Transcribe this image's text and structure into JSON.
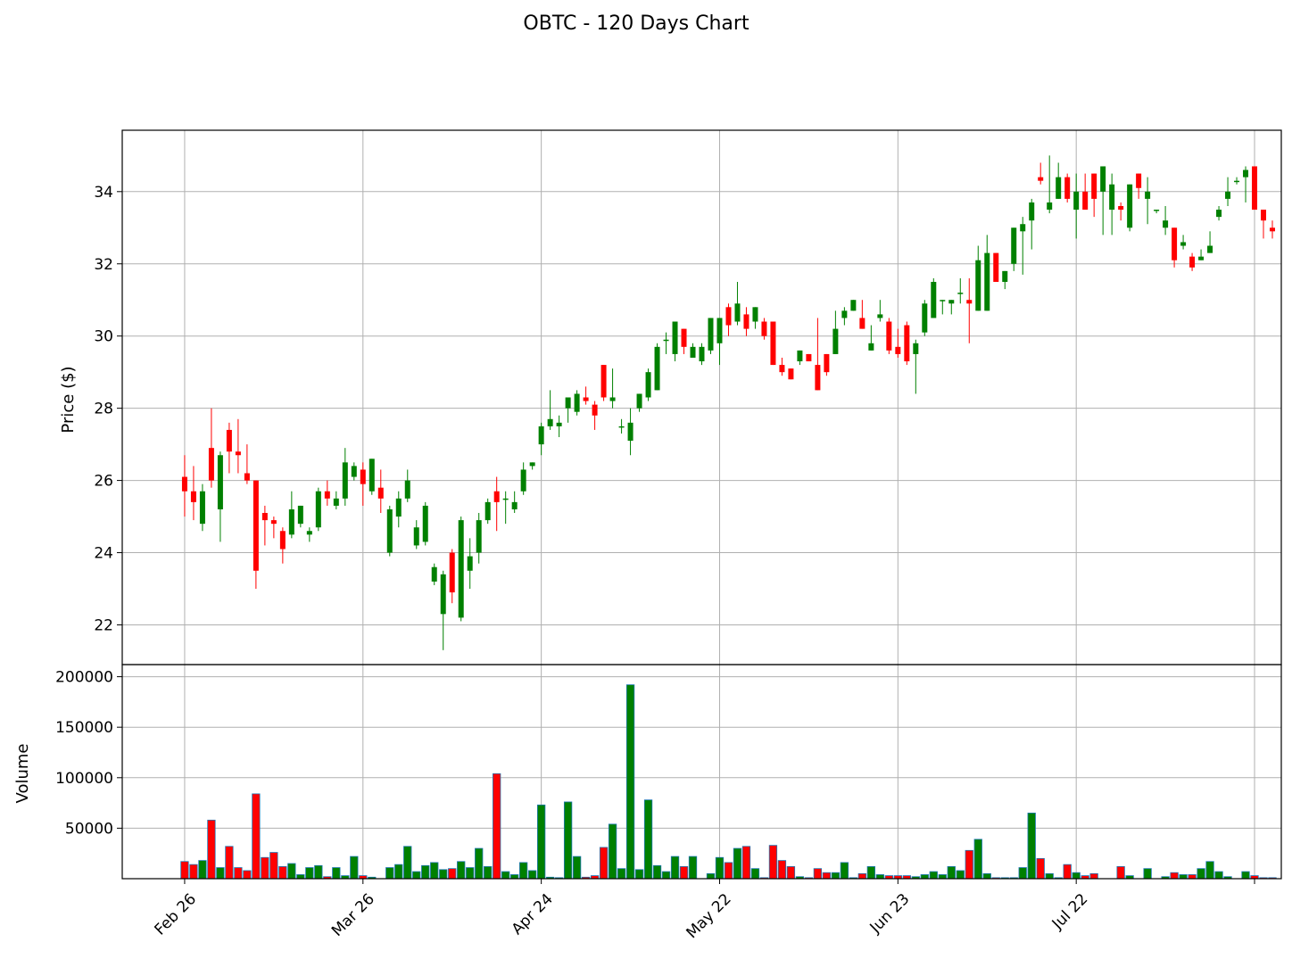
{
  "chart_data": {
    "type": "candlestick",
    "title": "OBTC - 120 Days Chart",
    "price_panel": {
      "ylabel": "Price ($)",
      "ylim": [
        20.9,
        35.7
      ],
      "yticks": [
        22,
        24,
        26,
        28,
        30,
        32,
        34
      ],
      "grid": true
    },
    "volume_panel": {
      "ylabel": "Volume",
      "ylim": [
        0,
        212000
      ],
      "yticks": [
        50000,
        100000,
        150000,
        200000
      ],
      "grid": true
    },
    "x_axis": {
      "tick_labels": [
        "Feb 26",
        "Mar 26",
        "Apr 24",
        "May 22",
        "Jun 23",
        "Jul 22"
      ],
      "tick_positions": [
        0,
        20,
        40,
        60,
        80,
        100
      ],
      "extra_tick_positions": [
        120
      ],
      "xlim": [
        -7,
        123
      ]
    },
    "colors": {
      "up": "#008000",
      "down": "#ff0000",
      "volume_edge": "#1f77b4"
    },
    "candles": [
      [
        0,
        26.1,
        26.7,
        25.0,
        25.7,
        17000
      ],
      [
        1,
        25.7,
        26.4,
        24.9,
        25.4,
        14000
      ],
      [
        2,
        24.8,
        25.9,
        24.6,
        25.7,
        18000
      ],
      [
        3,
        26.9,
        28.0,
        25.8,
        26.0,
        58000
      ],
      [
        4,
        25.2,
        26.8,
        24.3,
        26.7,
        11000
      ],
      [
        5,
        27.4,
        27.6,
        26.2,
        26.8,
        32000
      ],
      [
        6,
        26.8,
        27.7,
        26.2,
        26.7,
        11000
      ],
      [
        7,
        26.2,
        27.0,
        25.9,
        26.0,
        8000
      ],
      [
        8,
        26.0,
        26.0,
        23.0,
        23.5,
        84000
      ],
      [
        9,
        25.1,
        25.3,
        24.2,
        24.9,
        21000
      ],
      [
        10,
        24.9,
        25.0,
        24.4,
        24.8,
        26000
      ],
      [
        11,
        24.6,
        24.7,
        23.7,
        24.1,
        12000
      ],
      [
        12,
        24.5,
        25.7,
        24.4,
        25.2,
        15000
      ],
      [
        13,
        24.8,
        25.3,
        24.7,
        25.3,
        4000
      ],
      [
        14,
        24.5,
        24.7,
        24.3,
        24.6,
        11000
      ],
      [
        15,
        24.7,
        25.8,
        24.6,
        25.7,
        13000
      ],
      [
        16,
        25.7,
        26.0,
        25.3,
        25.5,
        2000
      ],
      [
        17,
        25.3,
        25.7,
        25.2,
        25.5,
        11000
      ],
      [
        18,
        25.5,
        26.9,
        25.3,
        26.5,
        3000
      ],
      [
        19,
        26.1,
        26.5,
        26.0,
        26.4,
        22000
      ],
      [
        20,
        26.3,
        26.5,
        25.3,
        25.9,
        3000
      ],
      [
        21,
        25.7,
        26.6,
        25.6,
        26.6,
        1500
      ],
      [
        22,
        25.8,
        26.3,
        25.1,
        25.5,
        0
      ],
      [
        23,
        24.0,
        25.3,
        23.9,
        25.2,
        11000
      ],
      [
        24,
        25.0,
        25.7,
        24.7,
        25.5,
        14000
      ],
      [
        25,
        25.5,
        26.3,
        25.4,
        26.0,
        32000
      ],
      [
        26,
        24.2,
        24.9,
        24.1,
        24.7,
        7000
      ],
      [
        27,
        24.3,
        25.4,
        24.2,
        25.3,
        13000
      ],
      [
        28,
        23.2,
        23.7,
        23.1,
        23.6,
        16000
      ],
      [
        29,
        22.3,
        23.5,
        21.3,
        23.4,
        9000
      ],
      [
        30,
        24.0,
        24.1,
        22.6,
        22.9,
        10000
      ],
      [
        31,
        22.2,
        25.0,
        22.1,
        24.9,
        17000
      ],
      [
        32,
        23.5,
        24.4,
        23.0,
        23.9,
        11000
      ],
      [
        33,
        24.0,
        25.1,
        23.7,
        24.9,
        30000
      ],
      [
        34,
        24.9,
        25.5,
        24.8,
        25.4,
        12000
      ],
      [
        35,
        25.7,
        26.1,
        24.6,
        25.4,
        104000
      ],
      [
        36,
        25.5,
        25.7,
        24.8,
        25.5,
        7000
      ],
      [
        37,
        25.2,
        25.7,
        25.1,
        25.4,
        4000
      ],
      [
        38,
        25.7,
        26.5,
        25.6,
        26.3,
        16000
      ],
      [
        39,
        26.4,
        26.5,
        26.3,
        26.5,
        8000
      ],
      [
        40,
        27.0,
        27.6,
        26.7,
        27.5,
        73000
      ],
      [
        41,
        27.5,
        28.5,
        27.4,
        27.7,
        1500
      ],
      [
        42,
        27.5,
        27.8,
        27.2,
        27.6,
        1000
      ],
      [
        43,
        28.0,
        28.2,
        27.6,
        28.3,
        76000
      ],
      [
        44,
        27.9,
        28.5,
        27.8,
        28.4,
        22000
      ],
      [
        45,
        28.3,
        28.6,
        28.1,
        28.2,
        1500
      ],
      [
        46,
        28.1,
        28.2,
        27.4,
        27.8,
        3000
      ],
      [
        47,
        29.2,
        29.2,
        28.2,
        28.3,
        31000
      ],
      [
        48,
        28.2,
        29.1,
        28.0,
        28.3,
        54000
      ],
      [
        49,
        27.5,
        27.7,
        27.3,
        27.5,
        10000
      ],
      [
        50,
        27.1,
        28.0,
        26.7,
        27.6,
        192000
      ],
      [
        51,
        28.0,
        28.4,
        27.9,
        28.4,
        9000
      ],
      [
        52,
        28.3,
        29.1,
        28.2,
        29.0,
        78000
      ],
      [
        53,
        28.5,
        29.8,
        28.5,
        29.7,
        13000
      ],
      [
        54,
        29.9,
        30.1,
        29.5,
        29.9,
        7000
      ],
      [
        55,
        29.5,
        30.4,
        29.3,
        30.4,
        22000
      ],
      [
        56,
        30.2,
        30.2,
        29.5,
        29.7,
        12000
      ],
      [
        57,
        29.4,
        29.8,
        29.4,
        29.7,
        22000
      ],
      [
        58,
        29.3,
        29.8,
        29.2,
        29.7,
        0
      ],
      [
        59,
        29.6,
        30.5,
        29.5,
        30.5,
        5000
      ],
      [
        60,
        29.8,
        30.5,
        29.2,
        30.5,
        21000
      ],
      [
        61,
        30.8,
        30.9,
        30.0,
        30.3,
        16000
      ],
      [
        62,
        30.4,
        31.5,
        30.3,
        30.9,
        30000
      ],
      [
        63,
        30.6,
        30.8,
        30.0,
        30.2,
        32000
      ],
      [
        64,
        30.4,
        30.8,
        30.2,
        30.8,
        10000
      ],
      [
        65,
        30.4,
        30.5,
        29.9,
        30.0,
        1000
      ],
      [
        66,
        30.4,
        30.4,
        29.2,
        29.2,
        33000
      ],
      [
        67,
        29.2,
        29.4,
        28.9,
        29.0,
        18000
      ],
      [
        68,
        29.1,
        29.1,
        28.8,
        28.8,
        12000
      ],
      [
        69,
        29.3,
        29.6,
        29.2,
        29.6,
        2000
      ],
      [
        70,
        29.5,
        29.5,
        29.3,
        29.3,
        1000
      ],
      [
        71,
        29.2,
        30.5,
        28.5,
        28.5,
        10000
      ],
      [
        72,
        29.5,
        29.5,
        28.9,
        29.0,
        6000
      ],
      [
        73,
        29.5,
        30.7,
        29.5,
        30.2,
        6000
      ],
      [
        74,
        30.5,
        30.8,
        30.3,
        30.7,
        16000
      ],
      [
        75,
        30.7,
        31.0,
        30.7,
        31.0,
        1000
      ],
      [
        76,
        30.5,
        31.0,
        30.2,
        30.2,
        5000
      ],
      [
        77,
        29.6,
        30.3,
        29.6,
        29.8,
        12000
      ],
      [
        78,
        30.5,
        31.0,
        30.4,
        30.6,
        4000
      ],
      [
        79,
        30.4,
        30.5,
        29.5,
        29.6,
        3000
      ],
      [
        80,
        29.7,
        30.2,
        29.4,
        29.5,
        3000
      ],
      [
        81,
        30.3,
        30.4,
        29.2,
        29.3,
        3000
      ],
      [
        82,
        29.5,
        29.9,
        28.4,
        29.8,
        2000
      ],
      [
        83,
        30.1,
        31.0,
        30.0,
        30.9,
        4000
      ],
      [
        84,
        30.5,
        31.6,
        30.5,
        31.5,
        7000
      ],
      [
        85,
        31.0,
        31.0,
        30.6,
        31.0,
        4000
      ],
      [
        86,
        30.9,
        31.0,
        30.6,
        31.0,
        12000
      ],
      [
        87,
        31.2,
        31.6,
        30.9,
        31.2,
        8000
      ],
      [
        88,
        31.0,
        31.6,
        29.8,
        30.9,
        28000
      ],
      [
        89,
        30.7,
        32.5,
        30.7,
        32.1,
        39000
      ],
      [
        90,
        30.7,
        32.8,
        30.7,
        32.3,
        5000
      ],
      [
        91,
        32.3,
        32.3,
        31.5,
        31.5,
        1000
      ],
      [
        92,
        31.5,
        31.8,
        31.3,
        31.8,
        1000
      ],
      [
        93,
        32.0,
        33.0,
        31.8,
        33.0,
        1000
      ],
      [
        94,
        32.9,
        33.3,
        31.7,
        33.1,
        11000
      ],
      [
        95,
        33.2,
        33.8,
        32.4,
        33.7,
        65000
      ],
      [
        96,
        34.4,
        34.8,
        34.2,
        34.3,
        20000
      ],
      [
        97,
        33.5,
        35.0,
        33.4,
        33.7,
        5000
      ],
      [
        98,
        33.8,
        34.8,
        33.8,
        34.4,
        1000
      ],
      [
        99,
        34.4,
        34.5,
        33.7,
        33.8,
        14000
      ],
      [
        100,
        33.5,
        34.5,
        32.7,
        34.0,
        6000
      ],
      [
        101,
        34.0,
        34.5,
        33.5,
        33.5,
        3000
      ],
      [
        102,
        34.5,
        34.5,
        33.3,
        33.8,
        5000
      ],
      [
        103,
        34.0,
        34.7,
        32.8,
        34.7,
        0
      ],
      [
        104,
        33.5,
        34.5,
        32.8,
        34.2,
        0
      ],
      [
        105,
        33.6,
        33.7,
        33.2,
        33.5,
        12000
      ],
      [
        106,
        33.0,
        34.2,
        32.9,
        34.2,
        3000
      ],
      [
        107,
        34.5,
        34.5,
        33.8,
        34.1,
        0
      ],
      [
        108,
        33.8,
        34.4,
        33.1,
        34.0,
        10000
      ],
      [
        109,
        33.5,
        33.5,
        33.4,
        33.5,
        0
      ],
      [
        110,
        33.0,
        33.6,
        32.8,
        33.2,
        2000
      ],
      [
        111,
        33.0,
        33.0,
        31.9,
        32.1,
        6000
      ],
      [
        112,
        32.5,
        32.8,
        32.4,
        32.6,
        4000
      ],
      [
        113,
        32.2,
        32.3,
        31.8,
        31.9,
        4000
      ],
      [
        114,
        32.1,
        32.4,
        32.1,
        32.2,
        10000
      ],
      [
        115,
        32.3,
        32.9,
        32.3,
        32.5,
        17000
      ],
      [
        116,
        33.3,
        33.6,
        33.2,
        33.5,
        7000
      ],
      [
        117,
        33.8,
        34.4,
        33.6,
        34.0,
        2000
      ],
      [
        118,
        34.3,
        34.4,
        34.2,
        34.3,
        0
      ],
      [
        119,
        34.4,
        34.7,
        33.7,
        34.6,
        7000
      ],
      [
        120,
        34.7,
        34.7,
        33.5,
        33.5,
        3000
      ],
      [
        121,
        33.5,
        33.5,
        32.7,
        33.2,
        1000
      ],
      [
        122,
        33.0,
        33.2,
        32.7,
        32.9,
        1000
      ]
    ]
  }
}
